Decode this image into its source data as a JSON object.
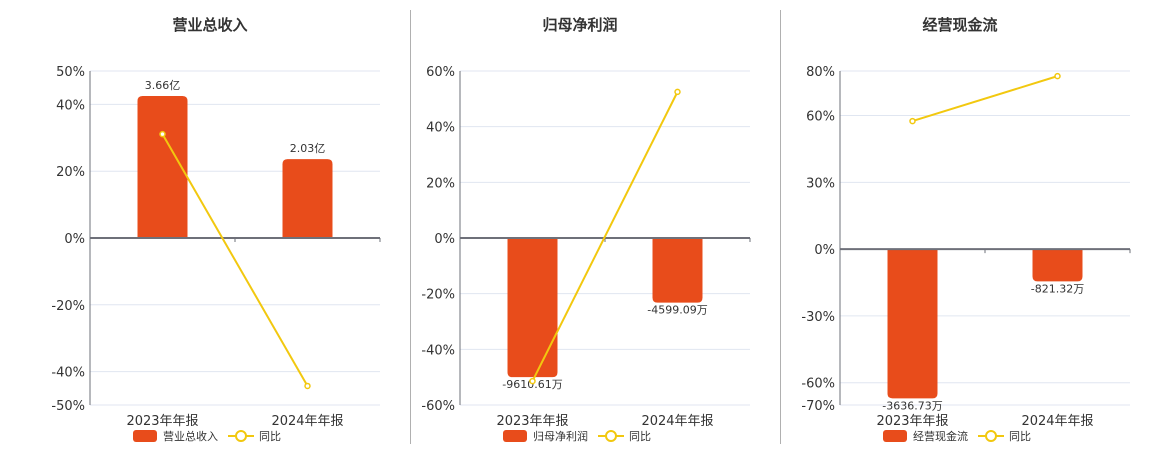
{
  "colors": {
    "bar": "#e84c1b",
    "line": "#f2c80f",
    "grid": "#e0e6f1",
    "axis": "#6e7079"
  },
  "chart_data": [
    {
      "type": "bar",
      "title": "营业总收入",
      "categories": [
        "2023年年报",
        "2024年年报"
      ],
      "series": [
        {
          "name": "营业总收入",
          "type": "bar",
          "values": [
            42.5,
            23.6
          ],
          "labels": [
            "3.66亿",
            "2.03亿"
          ]
        },
        {
          "name": "同比",
          "type": "line",
          "values": [
            31.1,
            -44.3
          ]
        }
      ],
      "ylim": [
        -50,
        50
      ],
      "yticks": [
        "50%",
        "40%",
        "20%",
        "0%",
        "-20%",
        "-40%",
        "-50%"
      ],
      "ytick_values": [
        50,
        40,
        20,
        0,
        -20,
        -40,
        -50
      ],
      "legend": [
        "营业总收入",
        "同比"
      ],
      "legend_position": "bottom",
      "grid": true
    },
    {
      "type": "bar",
      "title": "归母净利润",
      "categories": [
        "2023年年报",
        "2024年年报"
      ],
      "series": [
        {
          "name": "归母净利润",
          "type": "bar",
          "values": [
            -50,
            -23.2
          ],
          "labels": [
            "-9610.61万",
            "-4599.09万"
          ]
        },
        {
          "name": "同比",
          "type": "line",
          "values": [
            -51.4,
            52.5
          ]
        }
      ],
      "ylim": [
        -60,
        60
      ],
      "yticks": [
        "60%",
        "40%",
        "20%",
        "0%",
        "-20%",
        "-40%",
        "-60%"
      ],
      "ytick_values": [
        60,
        40,
        20,
        0,
        -20,
        -40,
        -60
      ],
      "legend": [
        "归母净利润",
        "同比"
      ],
      "legend_position": "bottom",
      "grid": true
    },
    {
      "type": "bar",
      "title": "经营现金流",
      "categories": [
        "2023年年报",
        "2024年年报"
      ],
      "series": [
        {
          "name": "经营现金流",
          "type": "bar",
          "values": [
            -67,
            -14.5
          ],
          "labels": [
            "-3636.73万",
            "-821.32万"
          ]
        },
        {
          "name": "同比",
          "type": "line",
          "values": [
            57.5,
            77.7
          ]
        }
      ],
      "ylim": [
        -70,
        80
      ],
      "yticks": [
        "80%",
        "60%",
        "30%",
        "0%",
        "-30%",
        "-60%",
        "-70%"
      ],
      "ytick_values": [
        80,
        60,
        30,
        0,
        -30,
        -60,
        -70
      ],
      "legend": [
        "经营现金流",
        "同比"
      ],
      "legend_position": "bottom",
      "grid": true
    }
  ]
}
